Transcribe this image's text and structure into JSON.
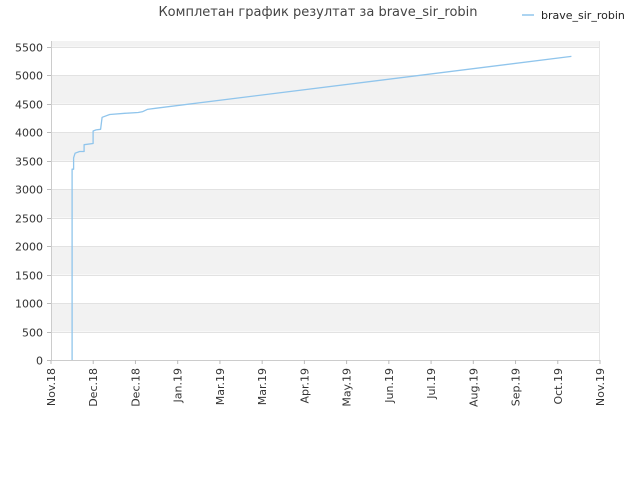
{
  "chart_data": {
    "type": "line",
    "title": "Комплетан график резултат за brave_sir_robin",
    "xlabel": "",
    "ylabel": "",
    "ylim": [
      0,
      5600
    ],
    "xlim": [
      "2018-11-01",
      "2019-11-01"
    ],
    "x_tick_labels": [
      "Nov.18",
      "Dec.18",
      "Dec.18",
      "Jan.19",
      "Mar.19",
      "Mar.19",
      "Apr.19",
      "May.19",
      "Jun.19",
      "Jul.19",
      "Aug.19",
      "Sep.19",
      "Oct.19",
      "Nov.19"
    ],
    "y_ticks": [
      0,
      500,
      1000,
      1500,
      2000,
      2500,
      3000,
      3500,
      4000,
      4500,
      5000,
      5500
    ],
    "grid": "horizontal bands",
    "legend_position": "top-right",
    "series": [
      {
        "name": "brave_sir_robin",
        "color": "#90c5ec",
        "points": [
          [
            "2018-11-15",
            0
          ],
          [
            "2018-11-15",
            3000
          ],
          [
            "2018-11-15",
            3350
          ],
          [
            "2018-11-16",
            3350
          ],
          [
            "2018-11-16",
            3550
          ],
          [
            "2018-11-17",
            3630
          ],
          [
            "2018-11-20",
            3660
          ],
          [
            "2018-11-23",
            3660
          ],
          [
            "2018-11-23",
            3780
          ],
          [
            "2018-11-29",
            3800
          ],
          [
            "2018-11-29",
            4020
          ],
          [
            "2018-12-01",
            4040
          ],
          [
            "2018-12-04",
            4050
          ],
          [
            "2018-12-05",
            4260
          ],
          [
            "2018-12-10",
            4310
          ],
          [
            "2018-12-20",
            4330
          ],
          [
            "2018-12-29",
            4345
          ],
          [
            "2019-01-01",
            4360
          ],
          [
            "2019-01-04",
            4400
          ],
          [
            "2019-01-10",
            4420
          ],
          [
            "2019-10-13",
            5330
          ]
        ]
      }
    ]
  }
}
